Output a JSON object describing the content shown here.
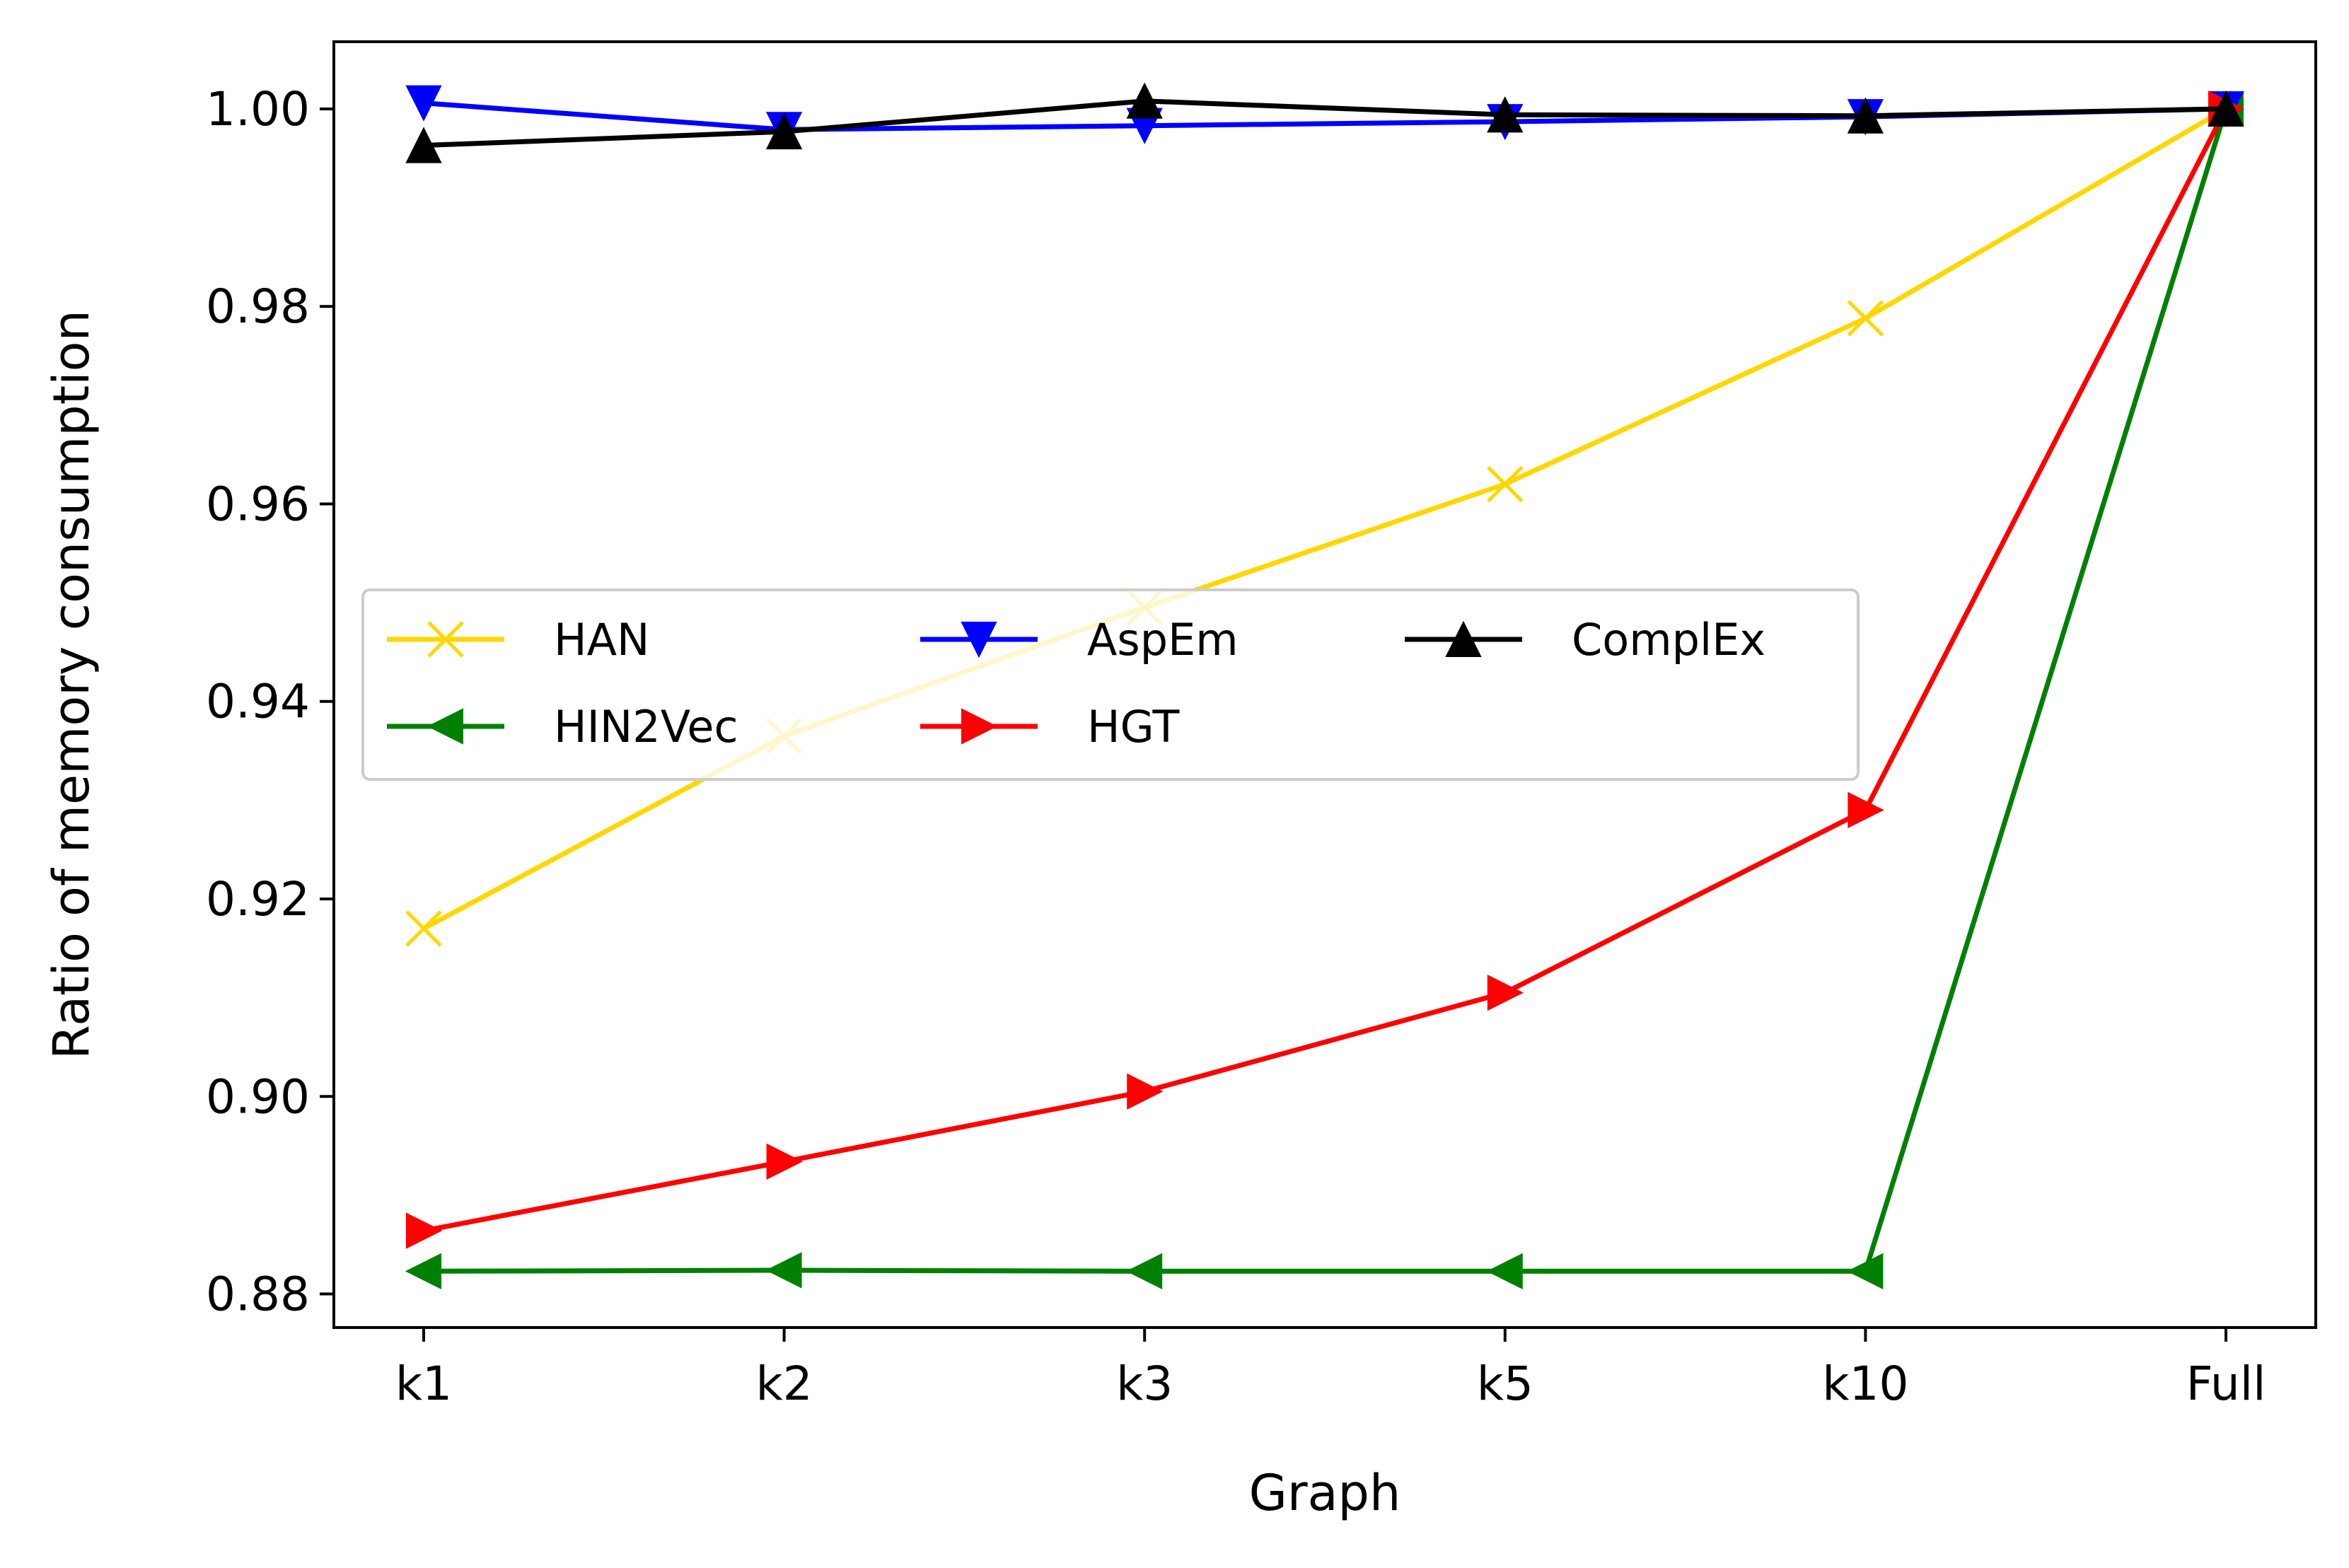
{
  "chart_data": {
    "type": "line",
    "title": "",
    "xlabel": "Graph",
    "ylabel": "Ratio of memory consumption",
    "categories": [
      "k1",
      "k2",
      "k3",
      "k5",
      "k10",
      "Full"
    ],
    "yticks": [
      "0.88",
      "0.90",
      "0.92",
      "0.94",
      "0.96",
      "0.98",
      "1.00"
    ],
    "ylim": [
      0.8766,
      1.0068
    ],
    "grid": false,
    "legend": {
      "position": "center-left",
      "columns": 3
    },
    "series": [
      {
        "name": "HAN",
        "color": "#FFD700",
        "marker": "x",
        "values": [
          0.917,
          0.9365,
          0.9495,
          0.962,
          0.9788,
          1.0
        ]
      },
      {
        "name": "HIN2Vec",
        "color": "#008000",
        "marker": "triangle-left",
        "values": [
          0.8823,
          0.8824,
          0.8823,
          0.8823,
          0.8823,
          1.0
        ]
      },
      {
        "name": "AspEm",
        "color": "#0000FF",
        "marker": "triangle-down",
        "values": [
          1.0006,
          0.9979,
          0.9983,
          0.9987,
          0.9992,
          1.0
        ]
      },
      {
        "name": "HGT",
        "color": "#FF0000",
        "marker": "triangle-right",
        "values": [
          0.8864,
          0.8934,
          0.9005,
          0.9105,
          0.929,
          1.0
        ]
      },
      {
        "name": "ComplEx",
        "color": "#000000",
        "marker": "triangle-up",
        "values": [
          0.9963,
          0.9977,
          1.0008,
          0.9994,
          0.9993,
          1.0
        ]
      }
    ]
  }
}
